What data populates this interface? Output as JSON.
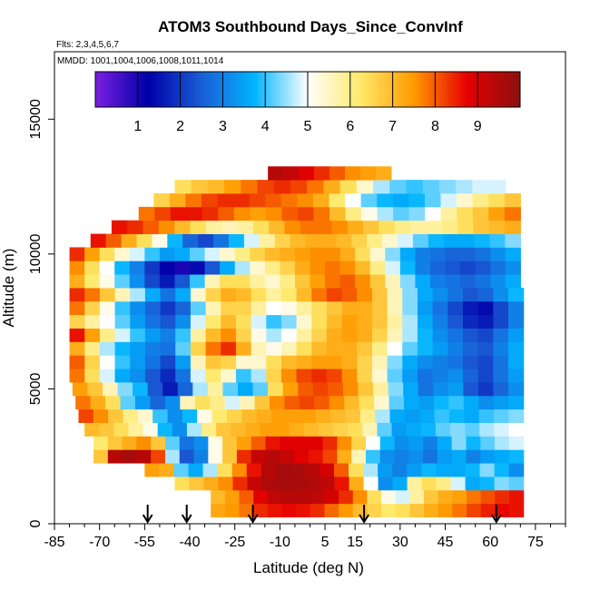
{
  "chart_data": {
    "type": "heatmap",
    "title": "ATOM3 Southbound Days_Since_ConvInf",
    "flights_note": "Flts: 2,3,4,5,6,7",
    "dates_note": "MMDD: 1001,1004,1006,1008,1011,1014",
    "xlabel": "Latitude (deg N)",
    "ylabel": "Altitude (m)",
    "xlim": [
      -85,
      85
    ],
    "ylim": [
      0,
      17500
    ],
    "x_ticks": [
      -85,
      -70,
      -55,
      -40,
      -25,
      -10,
      5,
      15,
      30,
      45,
      60,
      75
    ],
    "x_tick_labels": [
      "-85",
      "-70",
      "-55",
      "-40",
      "-25",
      "-10",
      "5",
      "15",
      "30",
      "45",
      "60",
      "75"
    ],
    "y_ticks": [
      0,
      5000,
      10000,
      15000
    ],
    "y_tick_labels": [
      "0",
      "5000",
      "10000",
      "15000"
    ],
    "colorbar": {
      "range": [
        0,
        10
      ],
      "ticks": [
        1,
        2,
        3,
        4,
        5,
        6,
        7,
        8,
        9
      ],
      "tick_labels": [
        "1",
        "2",
        "3",
        "4",
        "5",
        "6",
        "7",
        "8",
        "9"
      ],
      "placement": "top inset"
    },
    "legend_colors": [
      "#7a1fe0",
      "#0000a8",
      "#1a5ed6",
      "#00b4ff",
      "#ffffff",
      "#ffe96a",
      "#ff9a00",
      "#e60000",
      "#8b1010"
    ],
    "profile_latitudes": [
      -54,
      -41,
      -19,
      18,
      62
    ],
    "grid": false,
    "layers": [
      {
        "alt": 500,
        "lat_min": -33,
        "lat_max": 71,
        "values": [
          7.3,
          7.5,
          7.8,
          8.4,
          8.6,
          8.7,
          8.6,
          8.4,
          7.9,
          7.5,
          7.0,
          6.6,
          6.2,
          6.4,
          6.8,
          7.2,
          7.5,
          7.8,
          8.2,
          8.5,
          8.7,
          8.6
        ]
      },
      {
        "alt": 1000,
        "lat_min": -33,
        "lat_max": 71,
        "values": [
          7.0,
          7.4,
          8.0,
          8.8,
          9.3,
          9.4,
          9.4,
          9.3,
          9.0,
          8.4,
          7.6,
          6.4,
          5.2,
          4.8,
          5.8,
          6.8,
          7.2,
          7.4,
          7.8,
          8.1,
          8.4,
          8.6
        ]
      },
      {
        "alt": 1500,
        "lat_min": -45,
        "lat_max": 71,
        "values": [
          6.4,
          6.8,
          7.2,
          7.6,
          8.4,
          9.2,
          9.5,
          9.6,
          9.6,
          9.5,
          9.3,
          8.6,
          7.2,
          5.0,
          3.2,
          3.6,
          5.8,
          6.4,
          6.0,
          4.8,
          3.6,
          3.8,
          4.4,
          4.2
        ]
      },
      {
        "alt": 2000,
        "lat_min": -55,
        "lat_max": 71,
        "values": [
          7.4,
          7.2,
          4.2,
          3.6,
          4.6,
          6.4,
          7.6,
          8.6,
          9.4,
          9.6,
          9.6,
          9.4,
          9.0,
          8.0,
          6.4,
          4.6,
          3.4,
          3.0,
          3.4,
          3.8,
          3.6,
          3.6,
          3.8,
          4.4,
          3.8,
          3.2
        ]
      },
      {
        "alt": 2500,
        "lat_min": -72,
        "lat_max": 71,
        "values": [
          6.8,
          9.4,
          9.6,
          9.4,
          8.2,
          4.6,
          2.4,
          3.0,
          5.2,
          6.8,
          8.4,
          9.2,
          9.4,
          9.2,
          8.8,
          8.6,
          8.2,
          7.2,
          5.6,
          4.0,
          3.2,
          3.0,
          3.2,
          2.8,
          3.4,
          3.6,
          3.0,
          3.4,
          3.6,
          3.8
        ]
      },
      {
        "alt": 3000,
        "lat_min": -72,
        "lat_max": 71,
        "values": [
          6.2,
          6.8,
          7.2,
          7.6,
          6.8,
          4.2,
          2.8,
          3.2,
          5.2,
          6.8,
          7.4,
          8.0,
          8.6,
          8.8,
          8.8,
          8.8,
          8.4,
          7.6,
          6.6,
          5.0,
          3.8,
          3.2,
          3.4,
          3.0,
          3.6,
          4.4,
          3.8,
          4.2,
          4.6,
          4.8
        ]
      },
      {
        "alt": 3500,
        "lat_min": -75,
        "lat_max": 71,
        "values": [
          7.0,
          6.8,
          6.4,
          5.8,
          5.2,
          3.8,
          3.2,
          4.6,
          6.0,
          6.8,
          7.0,
          7.2,
          7.4,
          7.4,
          7.2,
          7.0,
          6.8,
          6.6,
          6.4,
          5.6,
          4.2,
          3.4,
          3.6,
          3.8,
          4.2,
          4.4,
          4.2,
          4.6,
          4.8,
          5.0
        ]
      },
      {
        "alt": 4000,
        "lat_min": -77,
        "lat_max": 71,
        "values": [
          8.2,
          7.6,
          6.8,
          6.0,
          5.4,
          4.0,
          3.2,
          3.8,
          5.2,
          6.2,
          6.6,
          7.0,
          7.2,
          7.4,
          7.4,
          7.4,
          7.2,
          7.0,
          6.8,
          6.0,
          4.6,
          3.6,
          3.4,
          3.6,
          4.0,
          3.8,
          3.6,
          4.0,
          4.2,
          4.4
        ]
      },
      {
        "alt": 4500,
        "lat_min": -78,
        "lat_max": 71,
        "values": [
          7.8,
          7.2,
          6.4,
          4.2,
          3.4,
          2.6,
          3.2,
          5.6,
          6.4,
          6.0,
          4.8,
          5.6,
          6.8,
          7.6,
          8.0,
          8.2,
          8.0,
          7.6,
          7.0,
          6.4,
          5.4,
          4.2,
          3.6,
          3.4,
          3.8,
          4.0,
          3.6,
          3.2,
          3.4,
          3.6
        ]
      },
      {
        "alt": 5000,
        "lat_min": -79,
        "lat_max": 71,
        "values": [
          7.4,
          6.8,
          5.6,
          4.4,
          3.8,
          2.4,
          1.6,
          2.6,
          4.6,
          5.8,
          4.2,
          3.6,
          4.2,
          6.4,
          7.4,
          8.0,
          8.2,
          8.0,
          7.6,
          6.8,
          5.8,
          4.4,
          3.6,
          2.8,
          3.2,
          3.4,
          2.4,
          2.0,
          2.6,
          3.2
        ]
      },
      {
        "alt": 5500,
        "lat_min": -80,
        "lat_max": 71,
        "values": [
          7.8,
          6.4,
          4.8,
          3.6,
          3.2,
          2.4,
          1.8,
          2.8,
          4.8,
          6.2,
          5.4,
          4.0,
          4.6,
          6.6,
          7.6,
          8.2,
          8.4,
          8.2,
          7.6,
          6.6,
          5.4,
          4.2,
          3.4,
          2.8,
          3.0,
          3.2,
          2.6,
          2.2,
          2.8,
          3.4
        ]
      },
      {
        "alt": 6000,
        "lat_min": -80,
        "lat_max": 71,
        "values": [
          8.0,
          6.6,
          5.0,
          4.0,
          3.4,
          2.8,
          2.2,
          3.4,
          5.6,
          6.8,
          6.6,
          5.4,
          5.4,
          6.4,
          7.0,
          7.2,
          7.4,
          7.4,
          7.2,
          6.6,
          5.6,
          4.4,
          3.6,
          3.2,
          3.0,
          2.8,
          2.4,
          2.2,
          2.8,
          3.6
        ]
      },
      {
        "alt": 6500,
        "lat_min": -80,
        "lat_max": 71,
        "values": [
          7.2,
          6.0,
          4.6,
          3.8,
          3.4,
          3.0,
          2.8,
          4.2,
          6.6,
          7.8,
          8.4,
          7.2,
          5.6,
          5.2,
          5.6,
          6.4,
          7.0,
          7.2,
          7.2,
          6.8,
          6.0,
          5.0,
          4.2,
          3.8,
          3.4,
          3.0,
          2.6,
          2.4,
          3.0,
          3.6
        ]
      },
      {
        "alt": 7000,
        "lat_min": -80,
        "lat_max": 71,
        "values": [
          8.6,
          7.4,
          6.0,
          4.8,
          4.0,
          3.4,
          3.0,
          4.0,
          5.8,
          7.0,
          7.6,
          6.6,
          5.2,
          4.6,
          5.0,
          5.8,
          6.6,
          7.2,
          7.4,
          7.2,
          6.6,
          5.6,
          4.6,
          3.8,
          3.2,
          2.8,
          2.4,
          2.2,
          2.8,
          3.4
        ]
      },
      {
        "alt": 7500,
        "lat_min": -80,
        "lat_max": 71,
        "values": [
          6.6,
          5.8,
          5.0,
          4.2,
          3.4,
          2.8,
          2.4,
          3.2,
          4.8,
          6.2,
          7.0,
          6.4,
          4.8,
          4.0,
          4.4,
          5.4,
          6.4,
          7.0,
          7.4,
          7.2,
          6.8,
          5.8,
          4.6,
          3.6,
          3.0,
          2.4,
          1.8,
          1.6,
          2.2,
          3.0
        ]
      },
      {
        "alt": 8000,
        "lat_min": -80,
        "lat_max": 71,
        "values": [
          7.8,
          6.6,
          5.2,
          4.0,
          3.2,
          2.6,
          2.0,
          2.6,
          4.2,
          5.6,
          6.6,
          6.6,
          5.8,
          5.0,
          5.2,
          5.8,
          6.4,
          6.8,
          7.2,
          7.2,
          6.8,
          5.6,
          4.4,
          3.4,
          2.8,
          2.2,
          1.6,
          1.4,
          2.2,
          3.0
        ]
      },
      {
        "alt": 8500,
        "lat_min": -80,
        "lat_max": 71,
        "values": [
          8.4,
          7.8,
          6.8,
          5.6,
          4.6,
          3.6,
          2.8,
          3.6,
          5.4,
          6.6,
          7.2,
          7.0,
          6.4,
          5.8,
          6.2,
          7.0,
          7.8,
          8.2,
          8.0,
          7.6,
          6.8,
          5.6,
          4.4,
          3.6,
          3.2,
          2.8,
          2.4,
          2.6,
          3.2,
          3.8
        ]
      },
      {
        "alt": 9000,
        "lat_min": -80,
        "lat_max": 70,
        "values": [
          7.2,
          6.2,
          5.2,
          4.2,
          3.2,
          2.2,
          1.6,
          2.4,
          4.0,
          5.6,
          6.4,
          6.4,
          5.8,
          5.4,
          6.0,
          6.8,
          7.4,
          7.8,
          8.0,
          7.6,
          6.8,
          5.6,
          4.4,
          3.6,
          3.0,
          2.8,
          2.6,
          2.8,
          3.2,
          3.6
        ]
      },
      {
        "alt": 9500,
        "lat_min": -80,
        "lat_max": 70,
        "values": [
          7.6,
          6.4,
          5.0,
          3.8,
          3.0,
          2.0,
          1.2,
          1.0,
          1.4,
          2.4,
          3.6,
          4.6,
          5.4,
          6.0,
          6.6,
          7.2,
          7.6,
          7.8,
          7.6,
          7.0,
          6.0,
          4.8,
          3.8,
          3.0,
          2.6,
          2.4,
          2.2,
          2.4,
          2.8,
          3.2
        ]
      },
      {
        "alt": 10000,
        "lat_min": -80,
        "lat_max": 70,
        "values": [
          8.4,
          7.4,
          6.4,
          5.4,
          4.8,
          4.0,
          3.4,
          3.6,
          4.2,
          4.8,
          5.4,
          6.0,
          6.6,
          7.0,
          7.2,
          7.4,
          7.6,
          7.6,
          7.2,
          6.4,
          5.4,
          4.4,
          3.6,
          3.0,
          2.8,
          2.6,
          2.6,
          2.8,
          3.2,
          3.6
        ]
      },
      {
        "alt": 10500,
        "lat_min": -73,
        "lat_max": 70,
        "values": [
          8.6,
          8.0,
          7.2,
          6.4,
          5.2,
          3.8,
          2.6,
          2.2,
          2.8,
          3.8,
          4.8,
          5.8,
          6.6,
          7.0,
          7.2,
          7.2,
          7.0,
          6.6,
          6.0,
          5.4,
          4.8,
          4.2,
          3.8,
          3.6,
          3.6,
          3.8,
          4.0,
          4.4
        ]
      },
      {
        "alt": 11000,
        "lat_min": -66,
        "lat_max": 70,
        "values": [
          8.6,
          8.4,
          8.0,
          7.6,
          7.0,
          6.4,
          5.8,
          5.6,
          5.8,
          6.4,
          7.0,
          7.6,
          7.8,
          7.8,
          7.6,
          7.2,
          6.8,
          6.4,
          6.0,
          5.8,
          5.8,
          6.0,
          6.4,
          6.8,
          7.0,
          7.2
        ]
      },
      {
        "alt": 11500,
        "lat_min": -57,
        "lat_max": 70,
        "values": [
          7.8,
          8.2,
          8.6,
          8.6,
          8.4,
          8.0,
          7.6,
          7.4,
          7.6,
          8.0,
          8.2,
          7.8,
          7.0,
          6.0,
          5.2,
          4.6,
          4.2,
          4.4,
          5.0,
          5.8,
          6.4,
          6.8,
          7.4,
          7.8
        ]
      },
      {
        "alt": 12000,
        "lat_min": -52,
        "lat_max": 70,
        "values": [
          6.6,
          7.2,
          7.8,
          8.2,
          8.4,
          8.4,
          8.2,
          8.0,
          7.8,
          7.6,
          7.2,
          6.2,
          5.0,
          4.2,
          3.8,
          3.6,
          3.8,
          4.2,
          4.8,
          5.4,
          6.0,
          6.4,
          6.8
        ]
      },
      {
        "alt": 12500,
        "lat_min": -45,
        "lat_max": 65,
        "values": [
          6.4,
          6.8,
          7.0,
          7.4,
          7.8,
          8.2,
          8.4,
          8.2,
          7.8,
          7.2,
          6.4,
          5.4,
          4.6,
          4.2,
          4.0,
          4.2,
          4.4,
          4.6,
          4.8,
          4.8
        ]
      },
      {
        "alt": 13000,
        "lat_min": -14,
        "lat_max": 27,
        "values": [
          9.4,
          9.2,
          8.8,
          8.4,
          8.0,
          7.6,
          7.4,
          7.2
        ]
      }
    ]
  }
}
